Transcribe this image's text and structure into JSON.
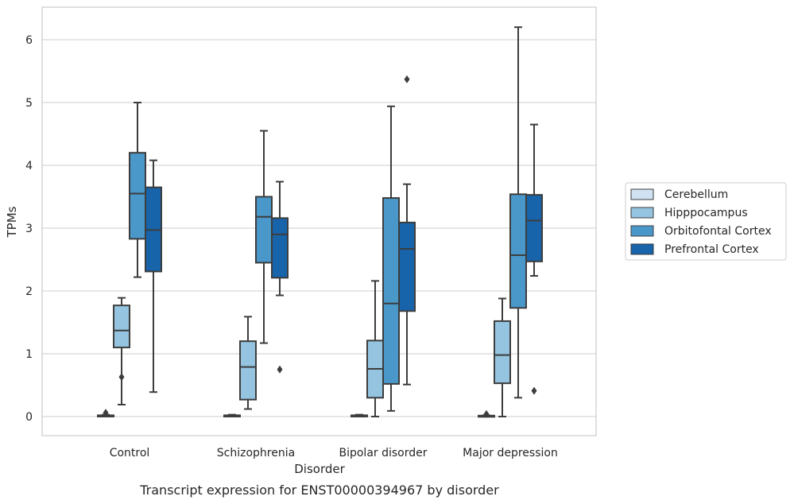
{
  "chart_data": {
    "type": "box",
    "caption": "Transcript expression for ENST00000394967 by disorder",
    "xlabel": "Disorder",
    "ylabel": "TPMs",
    "ylim": [
      -0.3,
      6.5
    ],
    "yticks": [
      0,
      1,
      2,
      3,
      4,
      5,
      6
    ],
    "categories": [
      "Control",
      "Schizophrenia",
      "Bipolar disorder",
      "Major depression"
    ],
    "grid": true,
    "legend_position": "right",
    "series": [
      {
        "name": "Cerebellum",
        "color": "#d0e1f2",
        "boxes": [
          {
            "whislo": 0.0,
            "q1": 0.0,
            "med": 0.01,
            "q3": 0.02,
            "whishi": 0.03,
            "fliers": [
              0.06
            ]
          },
          {
            "whislo": 0.0,
            "q1": 0.0,
            "med": 0.01,
            "q3": 0.02,
            "whishi": 0.03,
            "fliers": []
          },
          {
            "whislo": 0.0,
            "q1": 0.0,
            "med": 0.01,
            "q3": 0.02,
            "whishi": 0.03,
            "fliers": []
          },
          {
            "whislo": 0.0,
            "q1": 0.0,
            "med": 0.01,
            "q3": 0.015,
            "whishi": 0.02,
            "fliers": [
              0.04
            ]
          }
        ]
      },
      {
        "name": "Hipppocampus",
        "color": "#94c4df",
        "boxes": [
          {
            "whislo": 0.19,
            "q1": 1.1,
            "med": 1.37,
            "q3": 1.77,
            "whishi": 1.89,
            "fliers": [
              0.63
            ]
          },
          {
            "whislo": 0.12,
            "q1": 0.27,
            "med": 0.79,
            "q3": 1.2,
            "whishi": 1.59,
            "fliers": []
          },
          {
            "whislo": 0.0,
            "q1": 0.3,
            "med": 0.76,
            "q3": 1.21,
            "whishi": 2.16,
            "fliers": []
          },
          {
            "whislo": 0.0,
            "q1": 0.53,
            "med": 0.98,
            "q3": 1.52,
            "whishi": 1.88,
            "fliers": []
          }
        ]
      },
      {
        "name": "Orbitofontal Cortex",
        "color": "#4a98c9",
        "boxes": [
          {
            "whislo": 2.22,
            "q1": 2.83,
            "med": 3.55,
            "q3": 4.2,
            "whishi": 5.0,
            "fliers": []
          },
          {
            "whislo": 1.17,
            "q1": 2.45,
            "med": 3.18,
            "q3": 3.5,
            "whishi": 4.55,
            "fliers": []
          },
          {
            "whislo": 0.09,
            "q1": 0.52,
            "med": 1.8,
            "q3": 3.48,
            "whishi": 4.94,
            "fliers": []
          },
          {
            "whislo": 0.3,
            "q1": 1.73,
            "med": 2.57,
            "q3": 3.54,
            "whishi": 6.2,
            "fliers": []
          }
        ]
      },
      {
        "name": "Prefrontal Cortex",
        "color": "#1764ab",
        "boxes": [
          {
            "whislo": 0.39,
            "q1": 2.31,
            "med": 2.97,
            "q3": 3.65,
            "whishi": 4.08,
            "fliers": []
          },
          {
            "whislo": 1.93,
            "q1": 2.21,
            "med": 2.9,
            "q3": 3.16,
            "whishi": 3.74,
            "fliers": [
              0.75
            ]
          },
          {
            "whislo": 0.51,
            "q1": 1.68,
            "med": 2.67,
            "q3": 3.09,
            "whishi": 3.7,
            "fliers": [
              5.37
            ]
          },
          {
            "whislo": 2.24,
            "q1": 2.47,
            "med": 3.12,
            "q3": 3.53,
            "whishi": 4.65,
            "fliers": [
              0.41
            ]
          }
        ]
      }
    ]
  }
}
